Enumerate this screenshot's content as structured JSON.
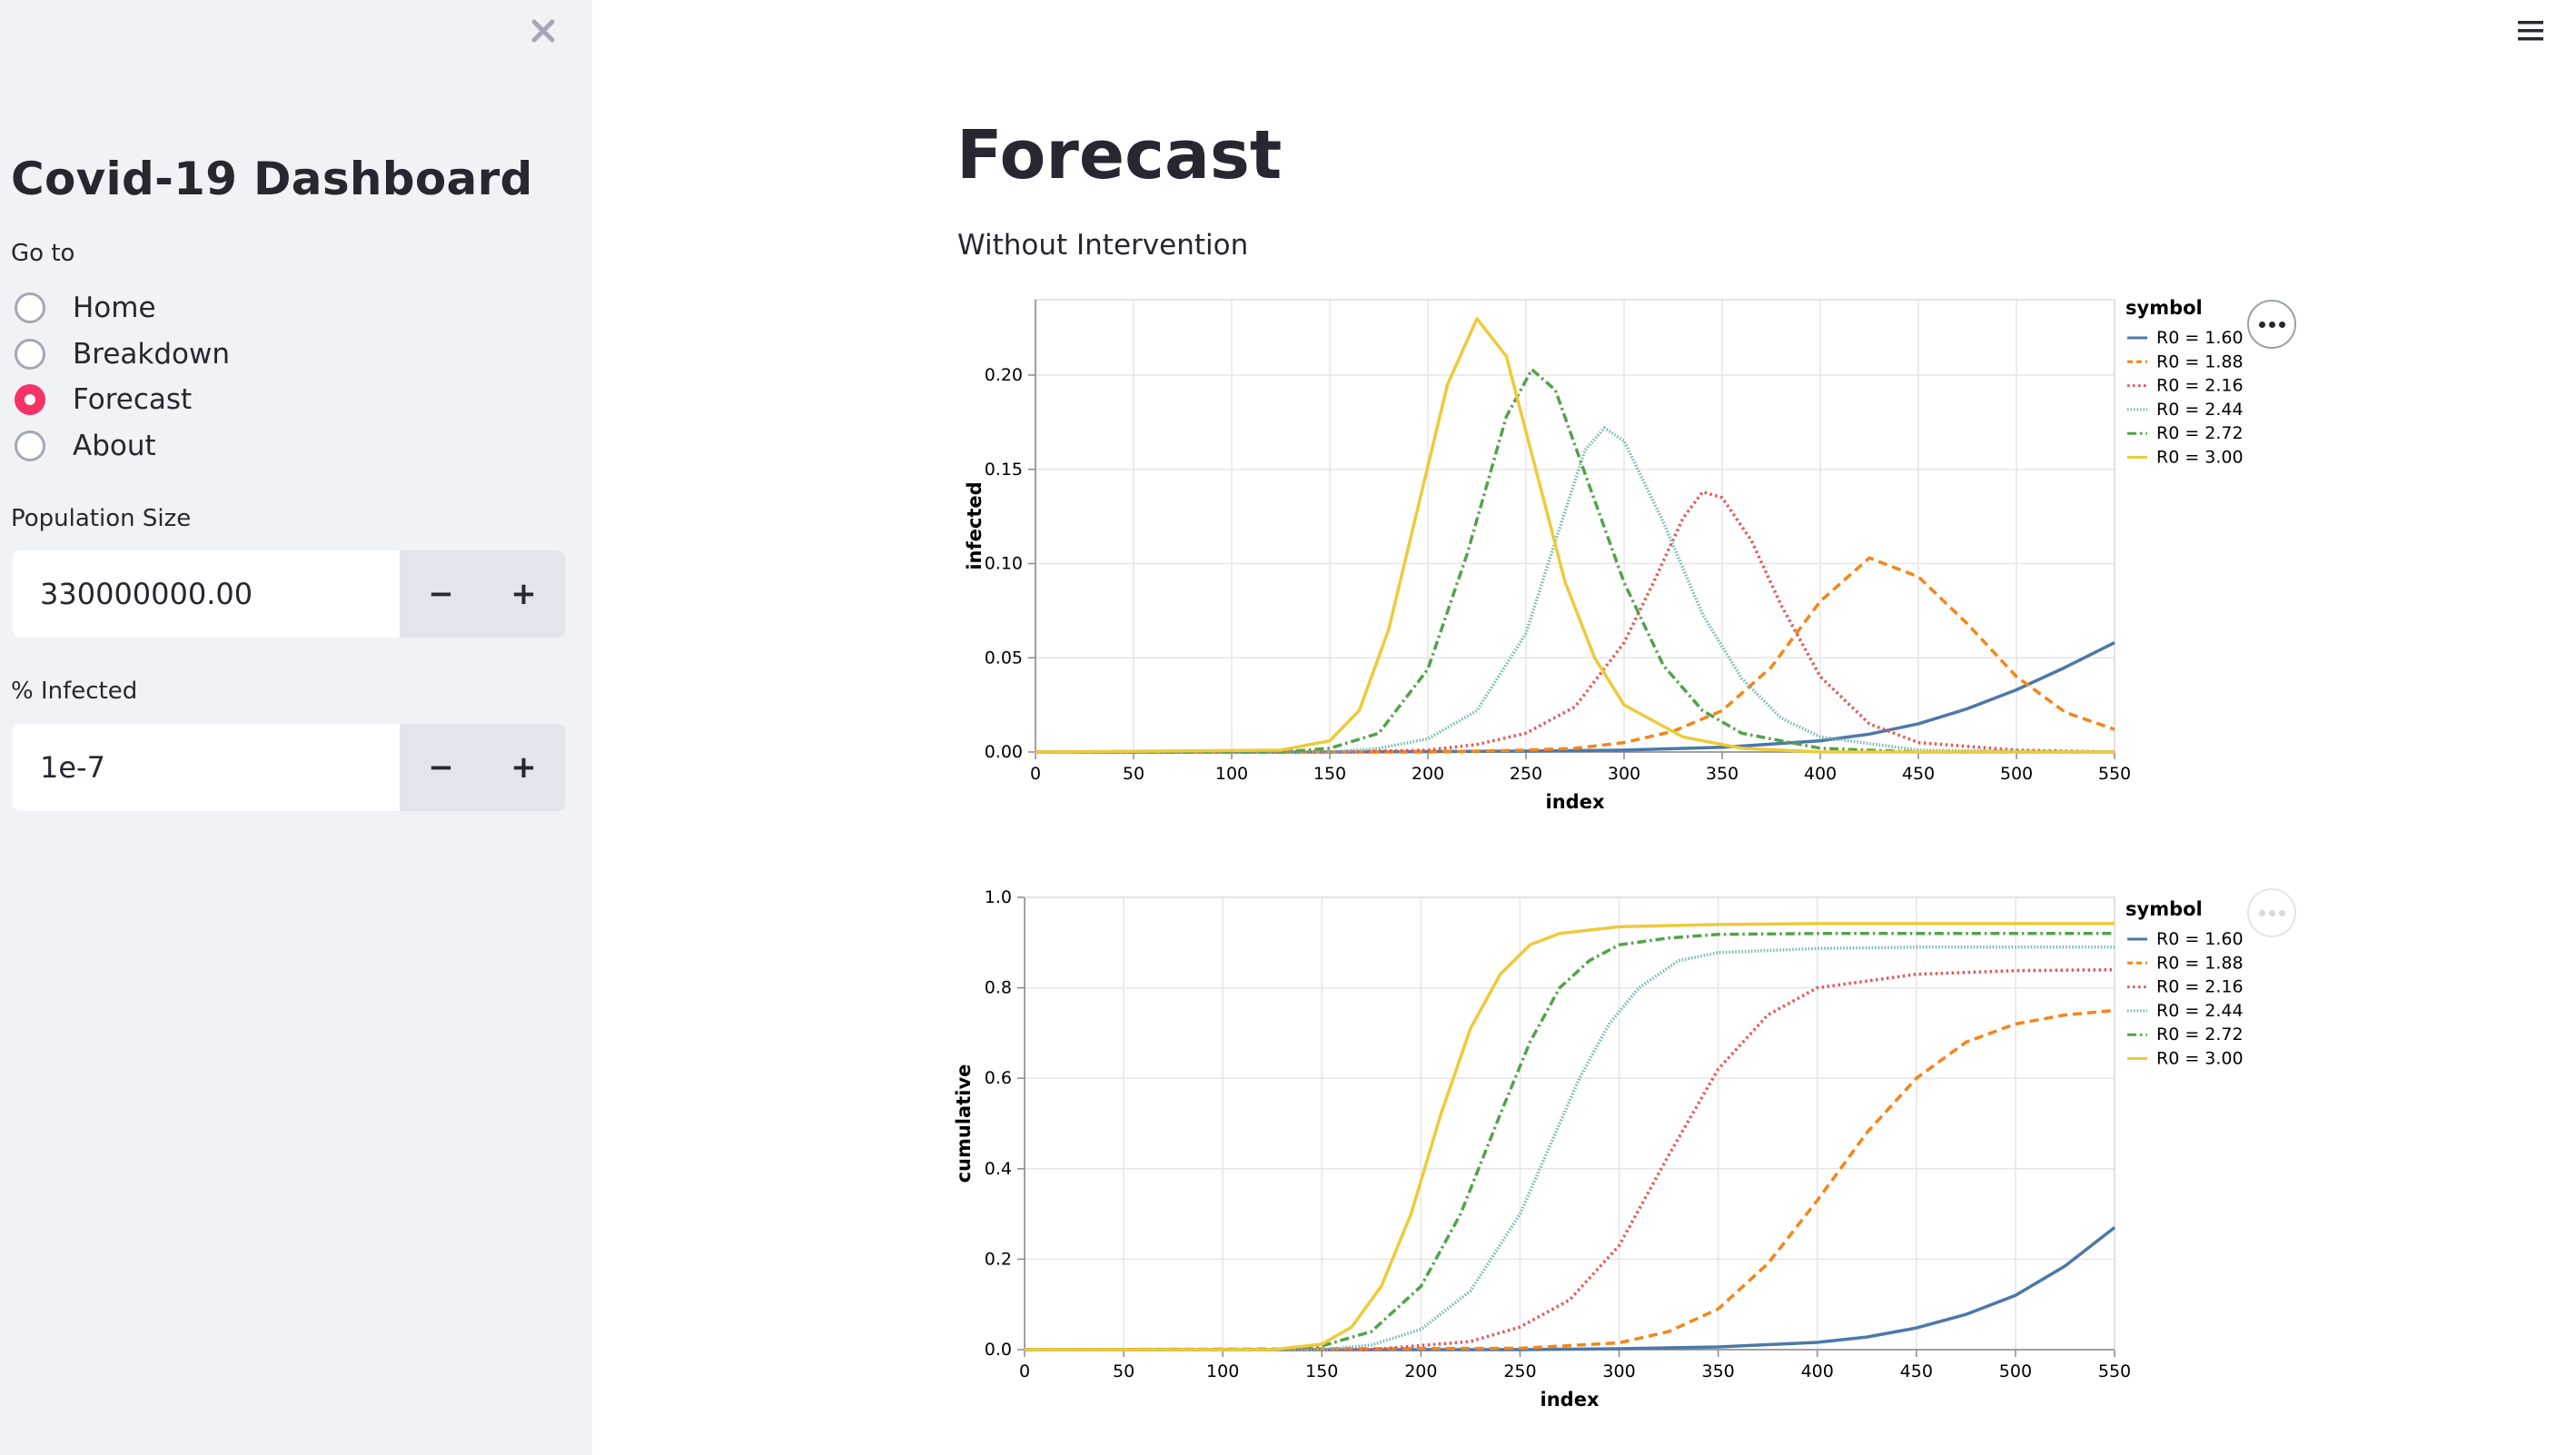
{
  "sidebar": {
    "title": "Covid-19 Dashboard",
    "nav_label": "Go to",
    "nav_options": [
      "Home",
      "Breakdown",
      "Forecast",
      "About"
    ],
    "nav_selected": "Forecast",
    "population": {
      "label": "Population Size",
      "value": "330000000.00",
      "minus": "−",
      "plus": "+"
    },
    "infected": {
      "label": "% Infected",
      "value": "1e-7",
      "minus": "−",
      "plus": "+"
    },
    "close_icon": "close-icon"
  },
  "header": {
    "menu_icon": "hamburger-menu-icon"
  },
  "main": {
    "title": "Forecast",
    "subtitle": "Without Intervention"
  },
  "chart_data": [
    {
      "type": "line",
      "xlabel": "index",
      "ylabel": "infected",
      "xlim": [
        0,
        550
      ],
      "ylim": [
        0,
        0.24
      ],
      "xticks": [
        0,
        50,
        100,
        150,
        200,
        250,
        300,
        350,
        400,
        450,
        500,
        550
      ],
      "yticks": [
        "0.00",
        "0.05",
        "0.10",
        "0.15",
        "0.20"
      ],
      "grid": true,
      "legend_title": "symbol",
      "legend_position": "right",
      "series": [
        {
          "name": "R0 = 1.60",
          "color": "#4c78a8",
          "dash": "solid",
          "x": [
            0,
            150,
            250,
            300,
            350,
            400,
            425,
            450,
            475,
            500,
            525,
            550
          ],
          "y": [
            0,
            0,
            0.0005,
            0.001,
            0.0025,
            0.006,
            0.0095,
            0.015,
            0.023,
            0.033,
            0.045,
            0.058
          ]
        },
        {
          "name": "R0 = 1.88",
          "color": "#f58518",
          "dash": "dashed",
          "x": [
            0,
            200,
            250,
            275,
            300,
            325,
            350,
            375,
            400,
            425,
            450,
            475,
            500,
            525,
            550
          ],
          "y": [
            0,
            0,
            0.001,
            0.002,
            0.005,
            0.011,
            0.022,
            0.045,
            0.08,
            0.103,
            0.093,
            0.068,
            0.04,
            0.021,
            0.012
          ]
        },
        {
          "name": "R0 = 2.16",
          "color": "#e45756",
          "dash": "dotted",
          "x": [
            0,
            150,
            200,
            225,
            250,
            275,
            300,
            315,
            330,
            340,
            350,
            365,
            380,
            400,
            425,
            450,
            500,
            550
          ],
          "y": [
            0,
            0,
            0.001,
            0.004,
            0.01,
            0.024,
            0.058,
            0.09,
            0.124,
            0.138,
            0.135,
            0.112,
            0.078,
            0.04,
            0.015,
            0.005,
            0.001,
            0
          ]
        },
        {
          "name": "R0 = 2.44",
          "color": "#72b7b2",
          "dash": "fine-dotted",
          "x": [
            0,
            150,
            175,
            200,
            225,
            250,
            265,
            280,
            290,
            300,
            320,
            340,
            360,
            380,
            400,
            450,
            550
          ],
          "y": [
            0,
            0,
            0.002,
            0.007,
            0.022,
            0.063,
            0.112,
            0.16,
            0.172,
            0.165,
            0.122,
            0.073,
            0.039,
            0.018,
            0.008,
            0.001,
            0
          ]
        },
        {
          "name": "R0 = 2.72",
          "color": "#54a24b",
          "dash": "dash-dot",
          "x": [
            0,
            125,
            150,
            175,
            200,
            220,
            240,
            253,
            265,
            280,
            300,
            320,
            340,
            360,
            400,
            450,
            550
          ],
          "y": [
            0,
            0,
            0.002,
            0.01,
            0.044,
            0.105,
            0.178,
            0.203,
            0.192,
            0.148,
            0.09,
            0.046,
            0.022,
            0.01,
            0.002,
            0,
            0
          ]
        },
        {
          "name": "R0 = 3.00",
          "color": "#eeca3b",
          "dash": "solid",
          "x": [
            0,
            125,
            150,
            165,
            180,
            195,
            210,
            225,
            240,
            255,
            270,
            285,
            300,
            330,
            360,
            400,
            550
          ],
          "y": [
            0,
            0.001,
            0.006,
            0.022,
            0.065,
            0.13,
            0.195,
            0.23,
            0.21,
            0.15,
            0.09,
            0.05,
            0.025,
            0.008,
            0.002,
            0,
            0
          ]
        }
      ]
    },
    {
      "type": "line",
      "xlabel": "index",
      "ylabel": "cumulative",
      "xlim": [
        0,
        550
      ],
      "ylim": [
        0,
        1.0
      ],
      "xticks": [
        0,
        50,
        100,
        150,
        200,
        250,
        300,
        350,
        400,
        450,
        500,
        550
      ],
      "yticks": [
        "0.0",
        "0.2",
        "0.4",
        "0.6",
        "0.8",
        "1.0"
      ],
      "grid": true,
      "legend_title": "symbol",
      "legend_position": "right",
      "series": [
        {
          "name": "R0 = 1.60",
          "color": "#4c78a8",
          "dash": "solid",
          "x": [
            0,
            250,
            300,
            350,
            400,
            425,
            450,
            475,
            500,
            525,
            550
          ],
          "y": [
            0,
            0,
            0.002,
            0.006,
            0.016,
            0.028,
            0.048,
            0.078,
            0.12,
            0.185,
            0.27
          ]
        },
        {
          "name": "R0 = 1.88",
          "color": "#f58518",
          "dash": "dashed",
          "x": [
            0,
            250,
            300,
            325,
            350,
            375,
            400,
            425,
            450,
            475,
            500,
            525,
            550
          ],
          "y": [
            0,
            0.003,
            0.015,
            0.04,
            0.09,
            0.19,
            0.33,
            0.48,
            0.6,
            0.68,
            0.72,
            0.74,
            0.75
          ]
        },
        {
          "name": "R0 = 2.16",
          "color": "#e45756",
          "dash": "dotted",
          "x": [
            0,
            175,
            225,
            250,
            275,
            300,
            325,
            350,
            375,
            400,
            450,
            500,
            550
          ],
          "y": [
            0,
            0,
            0.018,
            0.05,
            0.11,
            0.23,
            0.43,
            0.62,
            0.74,
            0.8,
            0.83,
            0.838,
            0.84
          ]
        },
        {
          "name": "R0 = 2.44",
          "color": "#72b7b2",
          "dash": "fine-dotted",
          "x": [
            0,
            150,
            175,
            200,
            225,
            250,
            265,
            280,
            295,
            310,
            330,
            350,
            400,
            450,
            550
          ],
          "y": [
            0,
            0,
            0.01,
            0.045,
            0.13,
            0.3,
            0.45,
            0.6,
            0.72,
            0.8,
            0.86,
            0.878,
            0.887,
            0.89,
            0.89
          ]
        },
        {
          "name": "R0 = 2.72",
          "color": "#54a24b",
          "dash": "dash-dot",
          "x": [
            0,
            125,
            150,
            175,
            200,
            220,
            240,
            255,
            270,
            285,
            300,
            325,
            350,
            400,
            550
          ],
          "y": [
            0,
            0,
            0.008,
            0.04,
            0.14,
            0.3,
            0.52,
            0.68,
            0.8,
            0.86,
            0.895,
            0.91,
            0.918,
            0.92,
            0.92
          ]
        },
        {
          "name": "R0 = 3.00",
          "color": "#eeca3b",
          "dash": "solid",
          "x": [
            0,
            125,
            150,
            165,
            180,
            195,
            210,
            225,
            240,
            255,
            270,
            300,
            350,
            400,
            550
          ],
          "y": [
            0,
            0,
            0.012,
            0.05,
            0.14,
            0.3,
            0.52,
            0.71,
            0.83,
            0.895,
            0.92,
            0.935,
            0.94,
            0.942,
            0.942
          ]
        }
      ]
    }
  ]
}
